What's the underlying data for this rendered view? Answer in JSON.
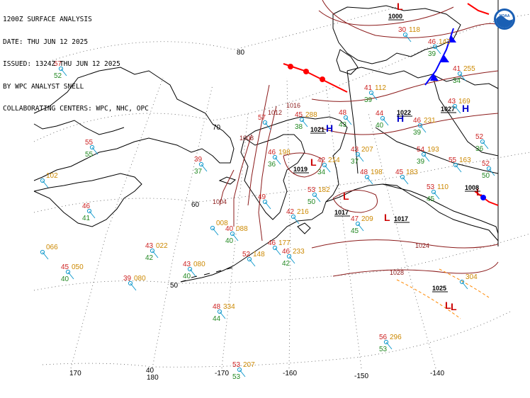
{
  "header": {
    "lines": [
      "1200Z SURFACE ANALYSIS",
      "DATE: THU JUN 12 2025",
      "ISSUED: 1324Z THU JUN 12 2025",
      "BY WPC ANALYST SNELL",
      "COLLABORATING CENTERS: WPC, NHC, OPC"
    ]
  },
  "logo": {
    "name": "noaa-logo-icon",
    "text": "NOAA"
  },
  "graticule": {
    "lat_labels": [
      "80",
      "70",
      "60",
      "50",
      "40"
    ],
    "lon_labels": [
      "170",
      "180",
      "-170",
      "-160",
      "-150",
      "-140"
    ]
  },
  "pressure_centers": [
    {
      "type": "L",
      "value": "1000",
      "color": "#cc0000"
    },
    {
      "type": "H",
      "value": "1022",
      "color": "#0000cc"
    },
    {
      "type": "H",
      "value": "1027",
      "color": "#0000cc"
    },
    {
      "type": "H",
      "value": "1021",
      "color": "#0000cc"
    },
    {
      "type": "L",
      "value": "1019",
      "color": "#cc0000"
    },
    {
      "type": "L",
      "value": "1017",
      "color": "#cc0000"
    },
    {
      "type": "L",
      "value": "1017",
      "color": "#cc0000"
    },
    {
      "type": "L",
      "value": "1008",
      "color": "#cc0000"
    },
    {
      "type": "L",
      "value": "1025",
      "color": "#cc0000"
    },
    {
      "type": "L",
      "value": "",
      "color": "#cc0000"
    }
  ],
  "isobar_labels": [
    "1016",
    "1012",
    "1008",
    "1004",
    "1024",
    "1028"
  ],
  "stations": [
    {
      "t": "57",
      "d": "52",
      "p": ""
    },
    {
      "t": "55",
      "d": "55",
      "p": ""
    },
    {
      "t": "",
      "d": "",
      "p": "102"
    },
    {
      "t": "46",
      "d": "41",
      "p": ""
    },
    {
      "t": "39",
      "d": "37",
      "p": ""
    },
    {
      "t": "",
      "d": "",
      "p": "066"
    },
    {
      "t": "45",
      "d": "40",
      "p": "050"
    },
    {
      "t": "43",
      "d": "42",
      "p": "022"
    },
    {
      "t": "39",
      "d": "",
      "p": "080"
    },
    {
      "t": "43",
      "d": "40",
      "p": "080"
    },
    {
      "t": "40",
      "d": "40",
      "p": "088"
    },
    {
      "t": "",
      "d": "",
      "p": "008"
    },
    {
      "t": "48",
      "d": "44",
      "p": "334"
    },
    {
      "t": "53",
      "d": "53",
      "p": "207"
    },
    {
      "t": "56",
      "d": "53",
      "p": "296"
    },
    {
      "t": "52",
      "d": "",
      "p": "148"
    },
    {
      "t": "46",
      "d": "42",
      "p": "233"
    },
    {
      "t": "46",
      "d": "",
      "p": "177"
    },
    {
      "t": "42",
      "d": "",
      "p": "216"
    },
    {
      "t": "49",
      "d": "",
      "p": ""
    },
    {
      "t": "53",
      "d": "50",
      "p": "182"
    },
    {
      "t": "47",
      "d": "45",
      "p": "209"
    },
    {
      "t": "43",
      "d": "37",
      "p": "207"
    },
    {
      "t": "42",
      "d": "34",
      "p": "214"
    },
    {
      "t": "48",
      "d": "",
      "p": "198"
    },
    {
      "t": "45",
      "d": "",
      "p": "183"
    },
    {
      "t": "53",
      "d": "45",
      "p": "110"
    },
    {
      "t": "55",
      "d": "",
      "p": "163"
    },
    {
      "t": "54",
      "d": "39",
      "p": "193"
    },
    {
      "t": "46",
      "d": "39",
      "p": "231"
    },
    {
      "t": "44",
      "d": "40",
      "p": ""
    },
    {
      "t": "43",
      "d": "",
      "p": "169"
    },
    {
      "t": "41",
      "d": "34",
      "p": "255"
    },
    {
      "t": "52",
      "d": "36",
      "p": ""
    },
    {
      "t": "52",
      "d": "50",
      "p": ""
    },
    {
      "t": "46",
      "d": "39",
      "p": "143"
    },
    {
      "t": "41",
      "d": "39",
      "p": "112"
    },
    {
      "t": "46",
      "d": "36",
      "p": "198"
    },
    {
      "t": "45",
      "d": "38",
      "p": "288"
    },
    {
      "t": "57",
      "d": "",
      "p": ""
    },
    {
      "t": "48",
      "d": "43",
      "p": ""
    },
    {
      "t": "30",
      "d": "",
      "p": "118"
    },
    {
      "t": "",
      "d": "",
      "p": "304"
    }
  ],
  "colors": {
    "coast": "#000000",
    "isobar": "#8b1a1a",
    "graticule": "#333333",
    "temp": "#cc2222",
    "dew": "#228822",
    "pres": "#cc8800",
    "station": "#1199cc",
    "warm_front": "#ff0000",
    "cold_front": "#0000ff"
  }
}
